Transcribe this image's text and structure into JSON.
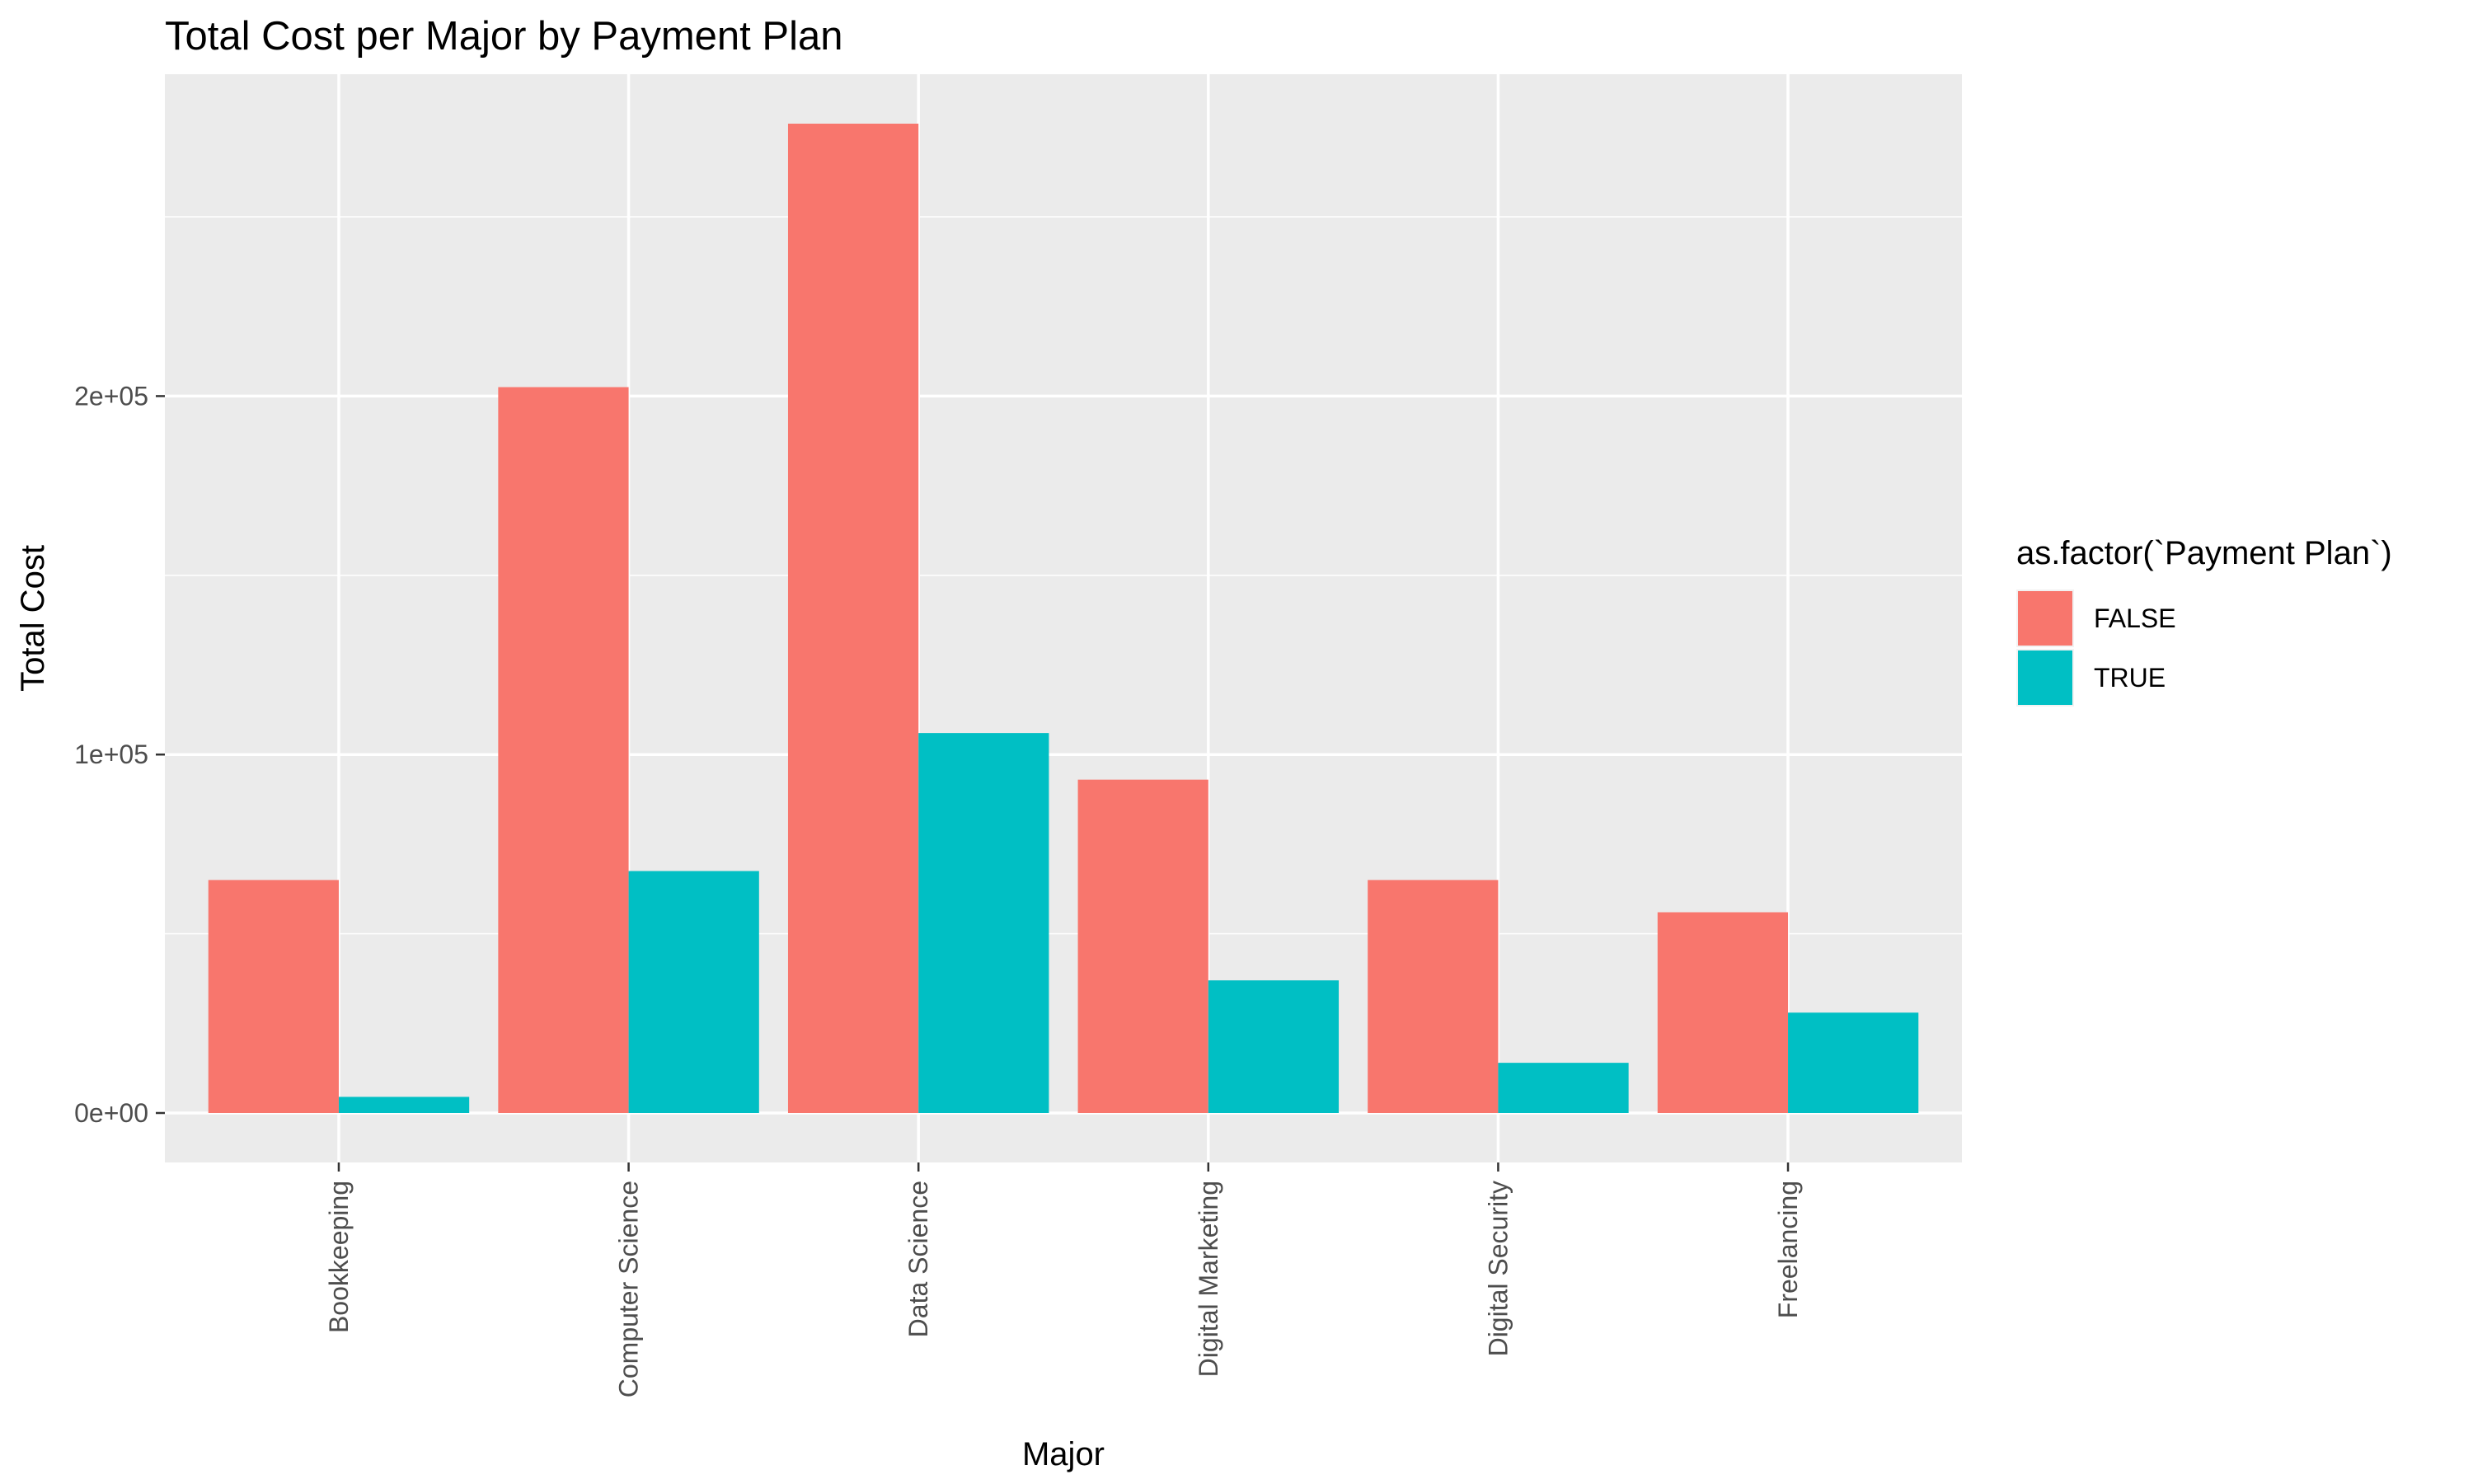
{
  "chart_data": {
    "type": "bar",
    "title": "Total Cost per Major by Payment Plan",
    "xlabel": "Major",
    "ylabel": "Total Cost",
    "categories": [
      "Bookkeeping",
      "Computer Science",
      "Data Science",
      "Digital Marketing",
      "Digital Security",
      "Freelancing"
    ],
    "series": [
      {
        "name": "FALSE",
        "color": "#F8766D",
        "values": [
          65000,
          202500,
          276000,
          93000,
          65000,
          56000
        ]
      },
      {
        "name": "TRUE",
        "color": "#00BFC4",
        "values": [
          4500,
          67500,
          106000,
          37000,
          14000,
          28000
        ]
      }
    ],
    "yticks": [
      {
        "value": 0,
        "label": "0e+00"
      },
      {
        "value": 100000,
        "label": "1e+05"
      },
      {
        "value": 200000,
        "label": "2e+05"
      }
    ],
    "ylim": [
      -13800,
      289800
    ],
    "legend": {
      "title": "as.factor(`Payment Plan`)",
      "position": "right"
    },
    "grid": true,
    "panel_background": "#EBEBEB"
  }
}
